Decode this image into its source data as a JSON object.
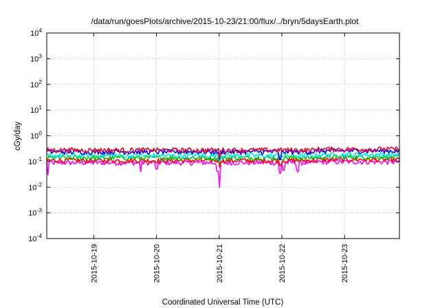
{
  "chart_data": {
    "type": "line",
    "title": "/data/run/goesPlots/archive/2015-10-23/21:00/flux/../bryn/5daysEarth.plot",
    "xlabel": "Coordinated Universal Time (UTC)",
    "ylabel": "cGy/day",
    "y_scale": "log",
    "ylim": [
      0.0001,
      10000
    ],
    "y_ticks": [
      {
        "base": "10",
        "exp": "-4"
      },
      {
        "base": "10",
        "exp": "-3"
      },
      {
        "base": "10",
        "exp": "-2"
      },
      {
        "base": "10",
        "exp": "-1"
      },
      {
        "base": "10",
        "exp": "0"
      },
      {
        "base": "10",
        "exp": "1"
      },
      {
        "base": "10",
        "exp": "2"
      },
      {
        "base": "10",
        "exp": "3"
      },
      {
        "base": "10",
        "exp": "4"
      }
    ],
    "xlim": [
      "2015-10-18 06:00",
      "2015-10-23 21:00"
    ],
    "x_ticks": [
      "2015-10-19",
      "2015-10-20",
      "2015-10-21",
      "2015-10-22",
      "2015-10-23"
    ],
    "grid": true,
    "legend": "none",
    "series": [
      {
        "color": "#ff00ff",
        "base": 0.09,
        "dips": [
          {
            "x": "2015-10-18 06:30",
            "y": 0.03
          },
          {
            "x": "2015-10-19 18:00",
            "y": 0.04
          },
          {
            "x": "2015-10-20 00:00",
            "y": 0.05
          },
          {
            "x": "2015-10-20 23:30",
            "y": 0.04
          },
          {
            "x": "2015-10-21 00:15",
            "y": 0.01
          },
          {
            "x": "2015-10-21 23:15",
            "y": 0.035
          },
          {
            "x": "2015-10-22 06:00",
            "y": 0.04
          },
          {
            "x": "2015-10-22 00:45",
            "y": 0.045
          }
        ]
      },
      {
        "color": "#ff0000",
        "base": 0.11,
        "dips": [
          {
            "x": "2015-10-21 00:15",
            "y": 0.06
          },
          {
            "x": "2015-10-21 23:15",
            "y": 0.07
          }
        ]
      },
      {
        "color": "#00c000",
        "base": 0.14,
        "dips": [
          {
            "x": "2015-10-21 00:15",
            "y": 0.08
          }
        ]
      },
      {
        "color": "#00e5e5",
        "base": 0.17,
        "dips": [
          {
            "x": "2015-10-21 00:15",
            "y": 0.1
          }
        ]
      },
      {
        "color": "#0000ff",
        "base": 0.24,
        "dips": [
          {
            "x": "2015-10-21 00:15",
            "y": 0.12
          },
          {
            "x": "2015-10-21 23:15",
            "y": 0.12
          }
        ]
      },
      {
        "color": "#e8002a",
        "base": 0.28,
        "dips": [
          {
            "x": "2015-10-21 00:15",
            "y": 0.14
          }
        ]
      }
    ]
  }
}
